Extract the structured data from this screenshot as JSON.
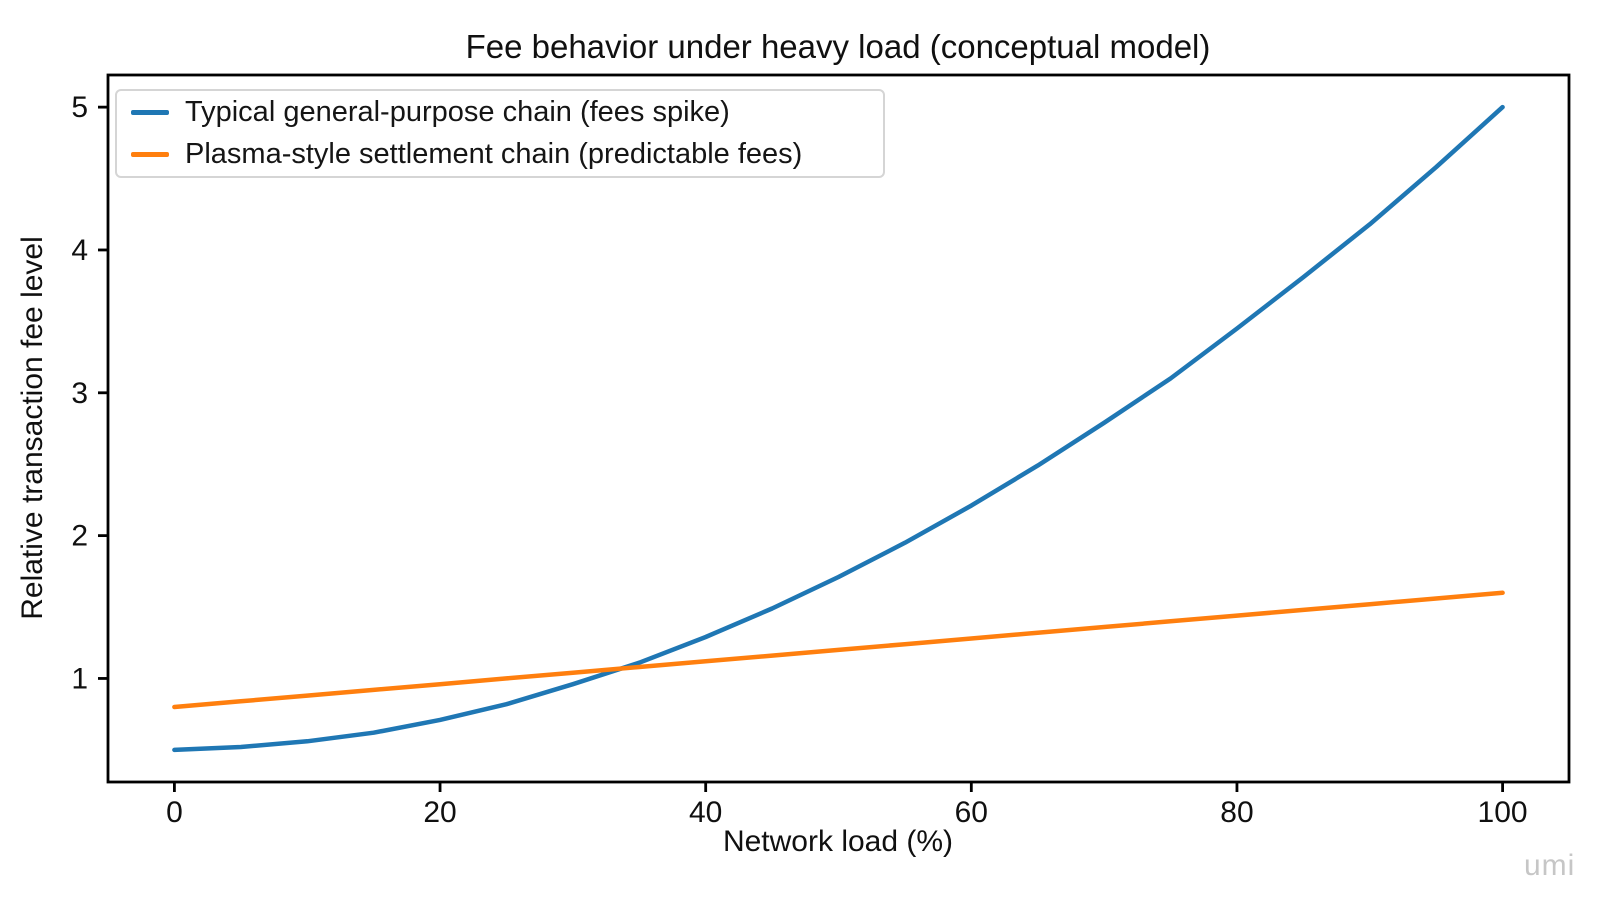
{
  "figure": {
    "watermark": "umi"
  },
  "chart_data": {
    "type": "line",
    "title": "Fee behavior under heavy load (conceptual model)",
    "xlabel": "Network load (%)",
    "ylabel": "Relative transaction fee level",
    "x_ticks": [
      0,
      20,
      40,
      60,
      80,
      100
    ],
    "y_ticks": [
      1,
      2,
      3,
      4,
      5
    ],
    "xlim": [
      -5,
      105
    ],
    "ylim": [
      0.275,
      5.225
    ],
    "grid": false,
    "legend_position": "upper left",
    "x": [
      0,
      5,
      10,
      15,
      20,
      25,
      30,
      35,
      40,
      45,
      50,
      55,
      60,
      65,
      70,
      75,
      80,
      85,
      90,
      95,
      100
    ],
    "series": [
      {
        "name": "Typical general-purpose chain (fees spike)",
        "color": "#1f77b4",
        "values": [
          0.5,
          0.52,
          0.56,
          0.62,
          0.71,
          0.82,
          0.96,
          1.11,
          1.29,
          1.49,
          1.71,
          1.95,
          2.21,
          2.49,
          2.79,
          3.1,
          3.45,
          3.81,
          4.18,
          4.58,
          5.0
        ]
      },
      {
        "name": "Plasma-style settlement chain (predictable fees)",
        "color": "#ff7f0e",
        "values": [
          0.8,
          0.84,
          0.88,
          0.92,
          0.96,
          1.0,
          1.04,
          1.08,
          1.12,
          1.16,
          1.2,
          1.24,
          1.28,
          1.32,
          1.36,
          1.4,
          1.44,
          1.48,
          1.52,
          1.56,
          1.6
        ]
      }
    ]
  }
}
